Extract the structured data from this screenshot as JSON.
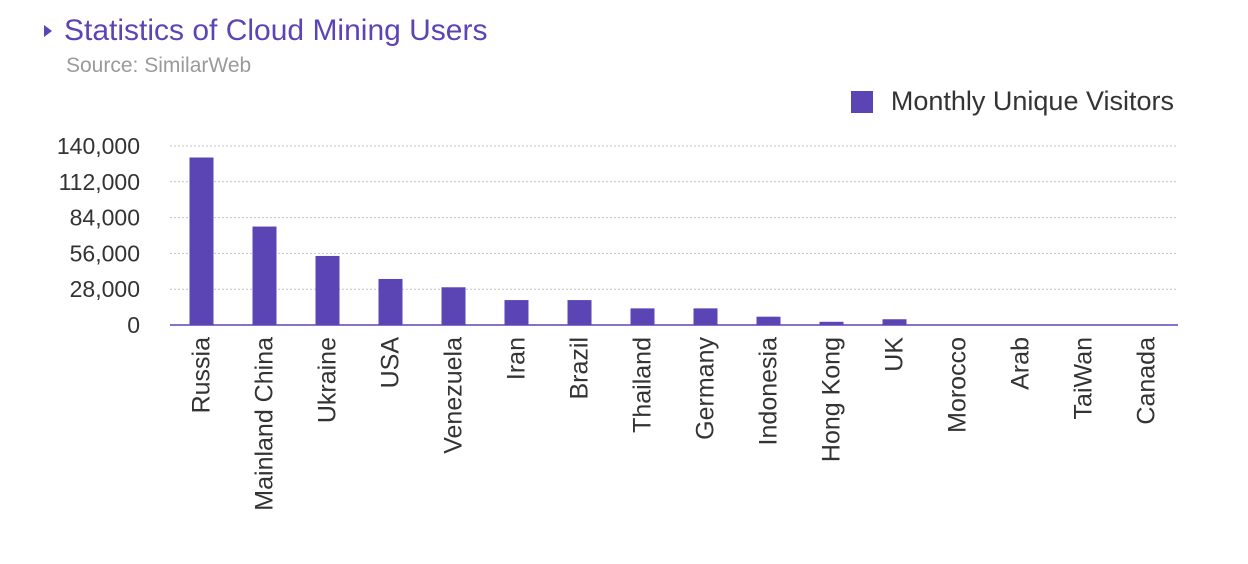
{
  "chart_data": {
    "type": "bar",
    "title": "Statistics of Cloud Mining Users",
    "subtitle": "Source: SimilarWeb",
    "xlabel": "",
    "ylabel": "",
    "ylim": [
      0,
      140000
    ],
    "yticks": [
      "0",
      "28,000",
      "56,000",
      "84,000",
      "112,000",
      "140,000"
    ],
    "grid": true,
    "legend_position": "top-right",
    "categories": [
      "Russia",
      "Mainland China",
      "Ukraine",
      "USA",
      "Venezuela",
      "Iran",
      "Brazil",
      "Thailand",
      "Germany",
      "Indonesia",
      "Hong Kong",
      "UK",
      "Morocco",
      "Arab",
      "TaiWan",
      "Canada"
    ],
    "series": [
      {
        "name": "Monthly Unique Visitors",
        "color": "#5b45b5",
        "values": [
          131000,
          77000,
          54000,
          36000,
          29500,
          19500,
          19500,
          13000,
          13000,
          6500,
          2500,
          4500,
          0,
          0,
          0,
          0
        ]
      }
    ]
  }
}
